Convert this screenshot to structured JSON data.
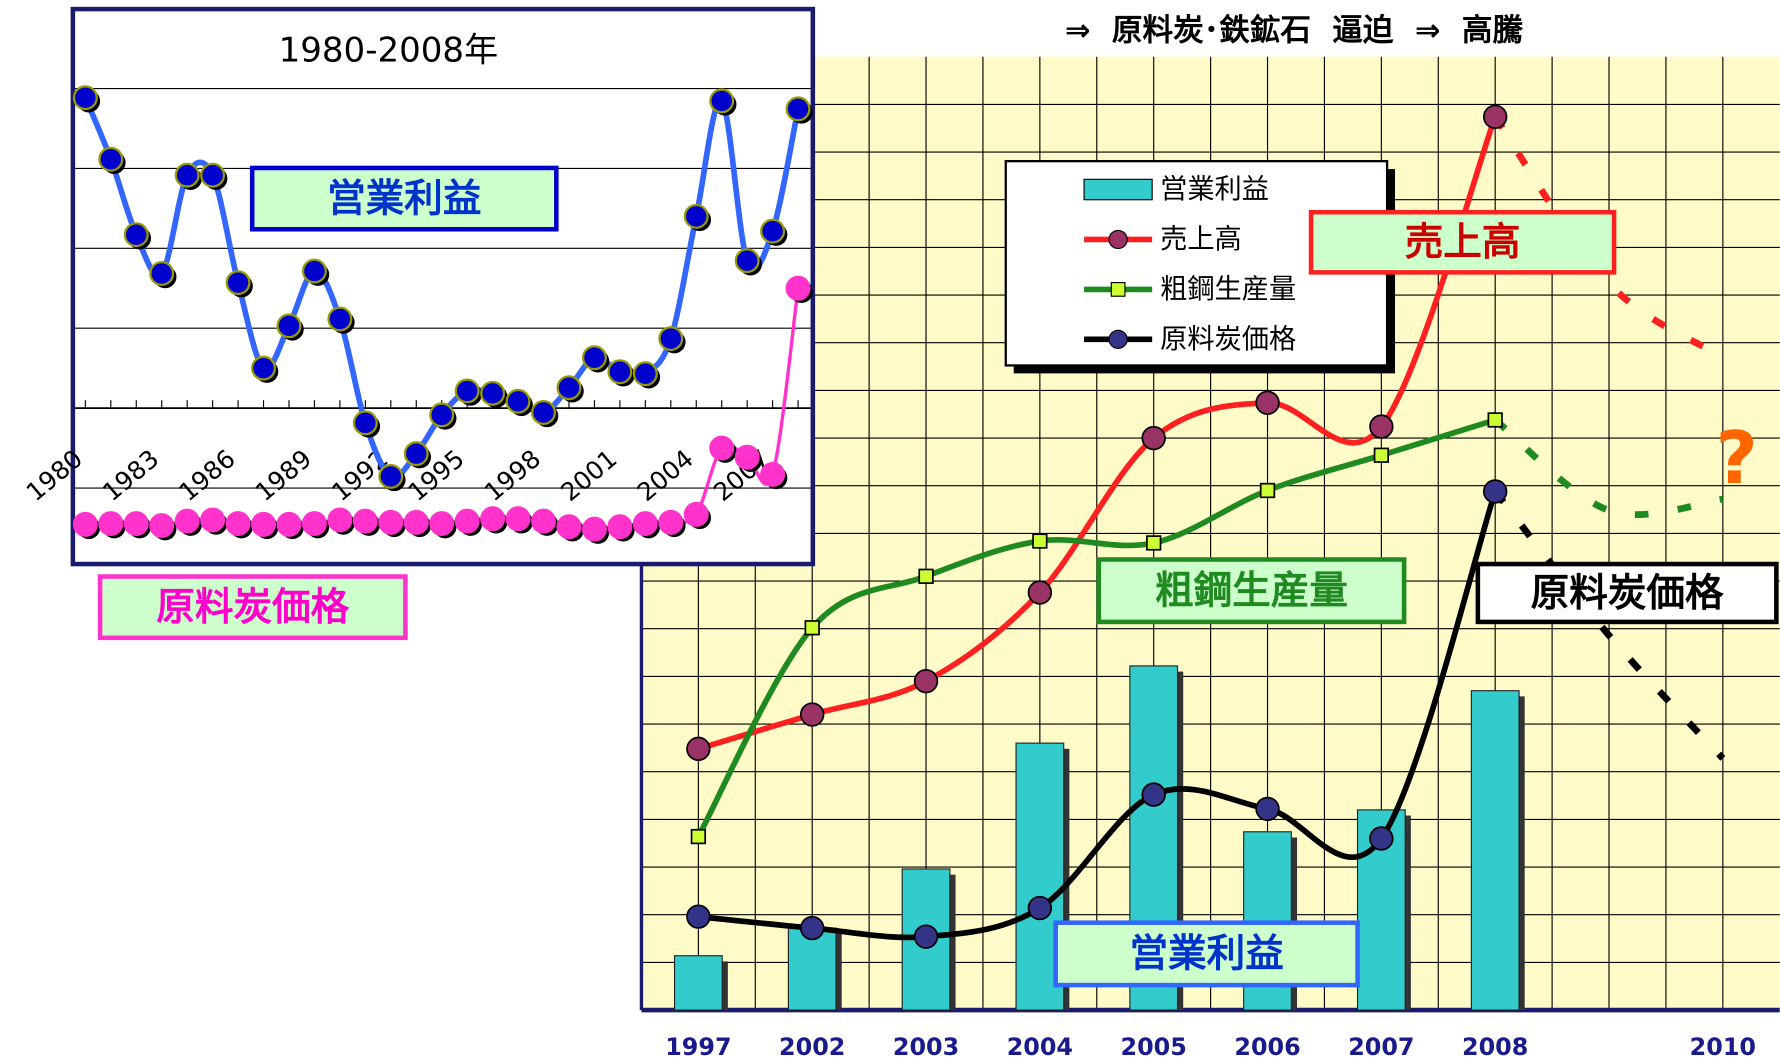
{
  "chart_data": [
    {
      "type": "combo",
      "title": "⇒  原料炭･鉄鉱石  逼迫  ⇒  高騰",
      "categories": [
        "1997",
        "2002",
        "2003",
        "2004",
        "2005",
        "2006",
        "2007",
        "2008",
        null,
        "2010"
      ],
      "ylim": [
        0,
        100
      ],
      "forecast_from": 7,
      "series": [
        {
          "name": "営業利益",
          "type": "bar",
          "color": "#33cccc",
          "values": [
            5.7,
            8.6,
            14.8,
            28.0,
            36.1,
            18.7,
            21.0,
            33.5,
            null,
            null
          ]
        },
        {
          "name": "売上高",
          "type": "line",
          "color": "#ff2020",
          "marker": "#993366",
          "values": [
            27.4,
            31.0,
            34.5,
            43.8,
            60.0,
            63.7,
            61.2,
            93.7,
            76.2,
            68.5
          ]
        },
        {
          "name": "粗鋼生産量",
          "type": "line",
          "color": "#1f8a1f",
          "marker": "#ccff33",
          "values": [
            18.2,
            40.1,
            45.5,
            49.2,
            49.0,
            54.5,
            58.2,
            61.9,
            52.4,
            53.6
          ]
        },
        {
          "name": "原料炭価格",
          "type": "line",
          "color": "#000000",
          "marker": "#333388",
          "values": [
            9.8,
            8.6,
            7.7,
            10.7,
            22.6,
            21.1,
            18.0,
            54.4,
            39.3,
            26.4
          ]
        }
      ],
      "annotations": [
        "売上高",
        "粗鋼生産量",
        "原料炭価格",
        "営業利益",
        "?"
      ],
      "legend": "upper-center"
    },
    {
      "type": "line",
      "title": "1980-2008年",
      "x": [
        1980,
        1981,
        1982,
        1983,
        1984,
        1985,
        1986,
        1987,
        1988,
        1989,
        1990,
        1991,
        1992,
        1993,
        1994,
        1995,
        1996,
        1997,
        1998,
        1999,
        2000,
        2001,
        2002,
        2003,
        2004,
        2005,
        2006,
        2007,
        2008
      ],
      "xlim": [
        1980,
        2008
      ],
      "xticks": [
        1980,
        1983,
        1986,
        1989,
        1992,
        1995,
        1998,
        2001,
        2004,
        2007
      ],
      "ylim": [
        -18,
        100
      ],
      "yticks": [
        0,
        20,
        40,
        60,
        80,
        100
      ],
      "grid": true,
      "series": [
        {
          "name": "営業利益",
          "color": "#3366ff",
          "marker": "#0000cc",
          "values": [
            97.7,
            82.3,
            63.4,
            53.7,
            78.3,
            78.3,
            51.4,
            30.0,
            40.6,
            54.3,
            42.3,
            16.3,
            2.9,
            8.6,
            18.3,
            24.3,
            23.7,
            21.7,
            18.9,
            25.1,
            32.6,
            29.1,
            28.6,
            37.4,
            68.0,
            96.9,
            56.9,
            64.3,
            94.9
          ]
        },
        {
          "name": "原料炭価格",
          "color": "#ff33cc",
          "marker": "#ff33cc",
          "values": [
            -9.1,
            -8.9,
            -8.9,
            -9.4,
            -8.3,
            -8.0,
            -8.9,
            -9.1,
            -9.1,
            -8.9,
            -8.0,
            -8.3,
            -8.6,
            -8.6,
            -8.9,
            -8.3,
            -7.7,
            -7.7,
            -8.3,
            -9.7,
            -10.3,
            -9.7,
            -8.9,
            -8.6,
            -6.6,
            10.0,
            7.7,
            3.4,
            50.0
          ]
        }
      ]
    }
  ]
}
